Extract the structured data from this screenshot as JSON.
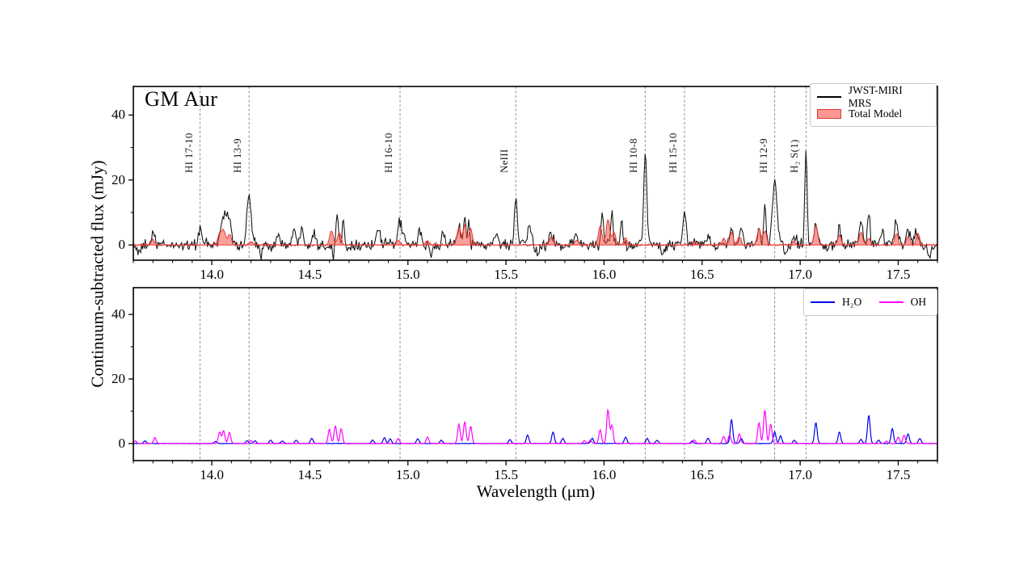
{
  "axis": {
    "x_label": "Wavelength (μm)",
    "y_label": "Continuum-subtracted flux (mJy)"
  },
  "colors": {
    "spectrum": "#111111",
    "model_fill": "rgba(244,67,54,0.5)",
    "model_edge": "#e53935",
    "h2o": "#0000ee",
    "oh": "#ff00ff",
    "marker_line": "#8f8f8f",
    "spine": "#000000"
  },
  "chart_data": [
    {
      "type": "line",
      "panel": "top",
      "title": "GM Aur",
      "xlim": [
        13.6,
        17.7
      ],
      "ylim": [
        -4.7,
        48.8
      ],
      "xticks": [
        "14.0",
        "14.5",
        "15.0",
        "15.5",
        "16.0",
        "16.5",
        "17.0",
        "17.5"
      ],
      "xtick_values": [
        14.0,
        14.5,
        15.0,
        15.5,
        16.0,
        16.5,
        17.0,
        17.5
      ],
      "x_minor_step": 0.1,
      "yticks": [
        "0",
        "20",
        "40"
      ],
      "ytick_values": [
        0,
        20,
        40
      ],
      "y_minor_values": [
        10,
        30
      ],
      "legend": {
        "position": "upper right",
        "entries": [
          {
            "label": "JWST-MIRI MRS",
            "color": "#000000",
            "style": "line"
          },
          {
            "label": "Total Model",
            "color": "#f47c7c",
            "style": "patch"
          }
        ]
      },
      "line_markers": [
        {
          "label": "HI 17-10",
          "wavelength": 13.94
        },
        {
          "label": "HI 13-9",
          "wavelength": 14.19
        },
        {
          "label": "HI 16-10",
          "wavelength": 14.96
        },
        {
          "label": "NeIII",
          "wavelength": 15.55
        },
        {
          "label": "HI 10-8",
          "wavelength": 16.21
        },
        {
          "label": "HI 15-10",
          "wavelength": 16.41
        },
        {
          "label": "HI 12-9",
          "wavelength": 16.87
        },
        {
          "label": "H₂ S(1)",
          "wavelength": 17.03
        }
      ],
      "series": [
        {
          "name": "JWST-MIRI MRS",
          "role": "spectrum",
          "noise_mJy": 0.85,
          "default_sigma": 0.009,
          "peaks_wavelength_height_sigma": [
            [
              13.7,
              3
            ],
            [
              13.94,
              5
            ],
            [
              14.05,
              6
            ],
            [
              14.07,
              9
            ],
            [
              14.09,
              8
            ],
            [
              14.19,
              15,
              0.011
            ],
            [
              14.34,
              3
            ],
            [
              14.42,
              4
            ],
            [
              14.46,
              6
            ],
            [
              14.52,
              4
            ],
            [
              14.64,
              9,
              0.006
            ],
            [
              14.67,
              7,
              0.006
            ],
            [
              14.85,
              5
            ],
            [
              14.96,
              7,
              0.012
            ],
            [
              15.06,
              4
            ],
            [
              15.18,
              3
            ],
            [
              15.26,
              6
            ],
            [
              15.29,
              9.5,
              0.006
            ],
            [
              15.31,
              8,
              0.005
            ],
            [
              15.45,
              3
            ],
            [
              15.55,
              14.5,
              0.007
            ],
            [
              15.62,
              6
            ],
            [
              15.73,
              4
            ],
            [
              15.86,
              4
            ],
            [
              15.99,
              9,
              0.006
            ],
            [
              16.04,
              10,
              0.006
            ],
            [
              16.09,
              7,
              0.006
            ],
            [
              16.21,
              28,
              0.008
            ],
            [
              16.41,
              11,
              0.008
            ],
            [
              16.53,
              3
            ],
            [
              16.65,
              5
            ],
            [
              16.7,
              4
            ],
            [
              16.79,
              5,
              0.006
            ],
            [
              16.82,
              13,
              0.006
            ],
            [
              16.87,
              19,
              0.012
            ],
            [
              16.97,
              3
            ],
            [
              17.03,
              29,
              0.006
            ],
            [
              17.08,
              6
            ],
            [
              17.2,
              7,
              0.006
            ],
            [
              17.31,
              7
            ],
            [
              17.35,
              10,
              0.006
            ],
            [
              17.42,
              4
            ],
            [
              17.49,
              7
            ],
            [
              17.55,
              5
            ],
            [
              17.59,
              5
            ],
            [
              13.63,
              -3
            ],
            [
              14.25,
              -5,
              0.005
            ],
            [
              14.62,
              -3.5,
              0.004
            ],
            [
              15.12,
              -3
            ],
            [
              15.66,
              -3
            ],
            [
              16.3,
              -3
            ],
            [
              16.93,
              -3
            ],
            [
              17.66,
              -4,
              0.008
            ]
          ]
        },
        {
          "name": "Total Model",
          "role": "model-fill",
          "noise_mJy": 0.15,
          "default_sigma": 0.009,
          "peaks_wavelength_height_sigma": [
            [
              13.7,
              1.5
            ],
            [
              14.04,
              3.5
            ],
            [
              14.06,
              4.5
            ],
            [
              14.09,
              3.5
            ],
            [
              14.2,
              1
            ],
            [
              14.61,
              4.5
            ],
            [
              14.65,
              4
            ],
            [
              14.95,
              1.5
            ],
            [
              15.1,
              1.5
            ],
            [
              15.26,
              5.5
            ],
            [
              15.29,
              6
            ],
            [
              15.32,
              5
            ],
            [
              15.73,
              2.5
            ],
            [
              15.86,
              1.5
            ],
            [
              15.98,
              6
            ],
            [
              16.02,
              8
            ],
            [
              16.05,
              4
            ],
            [
              16.11,
              2
            ],
            [
              16.46,
              1
            ],
            [
              16.61,
              2
            ],
            [
              16.65,
              4
            ],
            [
              16.69,
              2.5
            ],
            [
              16.79,
              5
            ],
            [
              16.82,
              4.5
            ],
            [
              16.97,
              1
            ],
            [
              17.08,
              6
            ],
            [
              17.2,
              3
            ],
            [
              17.31,
              4
            ],
            [
              17.35,
              2
            ],
            [
              17.49,
              3.5
            ],
            [
              17.55,
              2.5
            ],
            [
              17.6,
              3.5
            ]
          ]
        }
      ]
    },
    {
      "type": "line",
      "panel": "bottom",
      "xlim": [
        13.6,
        17.7
      ],
      "ylim": [
        -5.3,
        48.3
      ],
      "xticks": [
        "14.0",
        "14.5",
        "15.0",
        "15.5",
        "16.0",
        "16.5",
        "17.0",
        "17.5"
      ],
      "xtick_values": [
        14.0,
        14.5,
        15.0,
        15.5,
        16.0,
        16.5,
        17.0,
        17.5
      ],
      "x_minor_step": 0.1,
      "yticks": [
        "0",
        "20",
        "40"
      ],
      "ytick_values": [
        0,
        20,
        40
      ],
      "y_minor_values": [
        10,
        30
      ],
      "legend": {
        "position": "upper right",
        "entries": [
          {
            "label": "H₂O",
            "color": "#0000ee",
            "style": "line"
          },
          {
            "label": "OH",
            "color": "#ff00ff",
            "style": "line"
          }
        ]
      },
      "series": [
        {
          "name": "H₂O",
          "role": "h2o",
          "noise_mJy": 0.04,
          "default_sigma": 0.0065,
          "peaks_wavelength_height_sigma": [
            [
              13.66,
              0.8
            ],
            [
              14.02,
              0.6
            ],
            [
              14.18,
              0.9
            ],
            [
              14.22,
              0.8
            ],
            [
              14.3,
              1.0
            ],
            [
              14.36,
              0.8
            ],
            [
              14.43,
              1.0
            ],
            [
              14.51,
              1.6
            ],
            [
              14.82,
              1.0
            ],
            [
              14.88,
              1.8
            ],
            [
              14.91,
              1.4
            ],
            [
              15.05,
              1.5
            ],
            [
              15.17,
              1.0
            ],
            [
              15.52,
              1.2
            ],
            [
              15.61,
              2.6
            ],
            [
              15.74,
              3.6
            ],
            [
              15.79,
              1.6
            ],
            [
              15.94,
              1.6
            ],
            [
              16.11,
              2.0
            ],
            [
              16.22,
              1.6
            ],
            [
              16.27,
              1.0
            ],
            [
              16.45,
              0.8
            ],
            [
              16.53,
              1.6
            ],
            [
              16.65,
              7.5
            ],
            [
              16.7,
              1.6
            ],
            [
              16.87,
              3.6
            ],
            [
              16.9,
              2.4
            ],
            [
              16.97,
              1.0
            ],
            [
              17.08,
              6.5
            ],
            [
              17.2,
              3.6
            ],
            [
              17.31,
              1.2
            ],
            [
              17.35,
              8.8
            ],
            [
              17.4,
              1.0
            ],
            [
              17.47,
              4.6
            ],
            [
              17.55,
              3.0
            ],
            [
              17.61,
              1.6
            ]
          ]
        },
        {
          "name": "OH",
          "role": "oh",
          "noise_mJy": 0.04,
          "default_sigma": 0.0065,
          "peaks_wavelength_height_sigma": [
            [
              13.61,
              0.8
            ],
            [
              13.71,
              1.8
            ],
            [
              14.04,
              3.5
            ],
            [
              14.06,
              4.0
            ],
            [
              14.09,
              3.4
            ],
            [
              14.2,
              0.9
            ],
            [
              14.6,
              4.5
            ],
            [
              14.63,
              5.5
            ],
            [
              14.66,
              4.6
            ],
            [
              14.95,
              1.6
            ],
            [
              15.1,
              2.0
            ],
            [
              15.26,
              6.0
            ],
            [
              15.29,
              6.8
            ],
            [
              15.32,
              5.4
            ],
            [
              15.9,
              0.9
            ],
            [
              15.93,
              1.1
            ],
            [
              15.98,
              4.2
            ],
            [
              16.02,
              10.5
            ],
            [
              16.04,
              5.6
            ],
            [
              16.46,
              1.1
            ],
            [
              16.61,
              2.2
            ],
            [
              16.64,
              2.6
            ],
            [
              16.69,
              3.0
            ],
            [
              16.79,
              6.5
            ],
            [
              16.82,
              10.5
            ],
            [
              16.85,
              6.0
            ],
            [
              17.44,
              0.8
            ],
            [
              17.5,
              2.0
            ],
            [
              17.53,
              2.6
            ]
          ]
        }
      ]
    }
  ]
}
